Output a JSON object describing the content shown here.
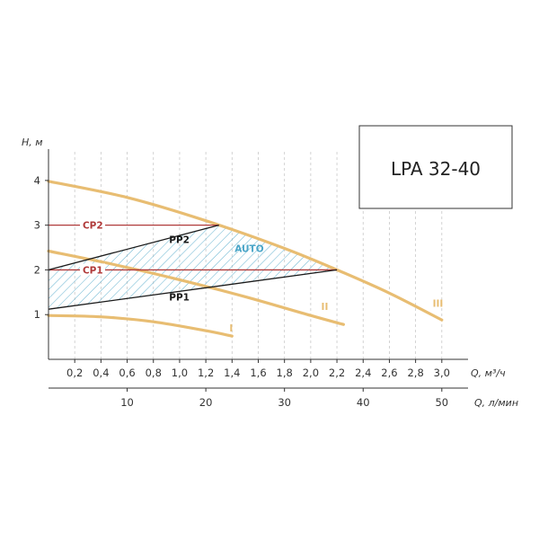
{
  "model": "LPA 32-40",
  "colors": {
    "curve": "#e8bd72",
    "cp": "#b03a3a",
    "pp": "#1a1a1a",
    "auto": "#4ba6c8",
    "axis": "#333333"
  },
  "chart_data": {
    "type": "line",
    "title": "",
    "xlabel": "Q, м³/ч",
    "x2label": "Q, л/мин",
    "ylabel": "H, м",
    "xlim": [
      0,
      3.2
    ],
    "ylim": [
      0,
      4.7
    ],
    "x_ticks": [
      0.2,
      0.4,
      0.6,
      0.8,
      1.0,
      1.2,
      1.4,
      1.6,
      1.8,
      2.0,
      2.2,
      2.4,
      2.6,
      2.8,
      3.0
    ],
    "x_tick_labels": [
      "0,2",
      "0,4",
      "0,6",
      "0,8",
      "1,0",
      "1,2",
      "1,4",
      "1,6",
      "1,8",
      "2,0",
      "2,2",
      "2,4",
      "2,6",
      "2,8",
      "3,0"
    ],
    "x2_ticks": [
      10,
      20,
      30,
      40,
      50
    ],
    "x2_tick_labels": [
      "10",
      "20",
      "30",
      "40",
      "50"
    ],
    "y_ticks": [
      1,
      2,
      3,
      4
    ],
    "y_tick_labels": [
      "1",
      "2",
      "3",
      "4"
    ],
    "series": [
      {
        "name": "I",
        "x": [
          0,
          0.4,
          0.8,
          1.2,
          1.4
        ],
        "y": [
          0.98,
          0.95,
          0.84,
          0.64,
          0.52
        ],
        "label_at": [
          1.38,
          0.62
        ]
      },
      {
        "name": "II",
        "x": [
          0,
          0.5,
          1.0,
          1.5,
          2.0,
          2.25
        ],
        "y": [
          2.42,
          2.12,
          1.78,
          1.4,
          0.98,
          0.78
        ],
        "label_at": [
          2.08,
          1.1
        ]
      },
      {
        "name": "III",
        "x": [
          0,
          0.6,
          1.2,
          1.8,
          2.2,
          2.6,
          3.0
        ],
        "y": [
          3.98,
          3.62,
          3.1,
          2.48,
          2.0,
          1.48,
          0.88
        ],
        "label_at": [
          2.93,
          1.18
        ]
      }
    ],
    "constant_pressure": [
      {
        "name": "CP2",
        "y": 3.0,
        "x_end": 1.3
      },
      {
        "name": "CP1",
        "y": 2.0,
        "x_end": 2.2
      }
    ],
    "proportional_pressure": [
      {
        "name": "PP2",
        "x": [
          0,
          1.3
        ],
        "y": [
          2.0,
          3.0
        ],
        "label_at": [
          0.92,
          2.6
        ]
      },
      {
        "name": "PP1",
        "x": [
          0,
          2.2
        ],
        "y": [
          1.12,
          2.0
        ],
        "label_at": [
          0.92,
          1.32
        ]
      }
    ],
    "auto_region": {
      "label": "AUTO",
      "label_at": [
        1.42,
        2.4
      ],
      "polygon": [
        [
          0,
          1.12
        ],
        [
          0,
          2.0
        ],
        [
          1.3,
          3.0
        ],
        [
          1.8,
          2.48
        ],
        [
          2.2,
          2.0
        ]
      ]
    },
    "grid": {
      "vertical": true,
      "horizontal": false
    }
  }
}
